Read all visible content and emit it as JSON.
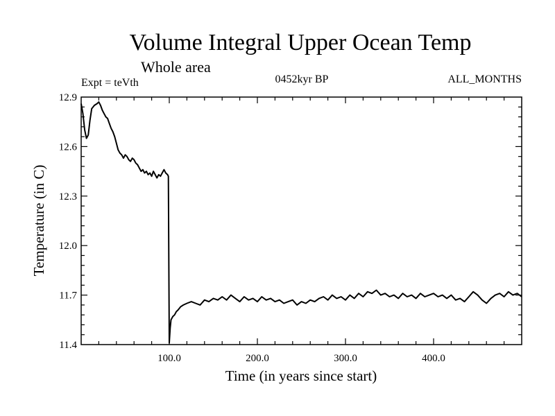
{
  "chart_data": {
    "type": "line",
    "title": "Volume Integral Upper Ocean Temp",
    "subtitle": "Whole area",
    "annotations": {
      "experiment": "Expt = teVth",
      "period": "0452kyr BP",
      "months": "ALL_MONTHS"
    },
    "xlabel": "Time (in years since start)",
    "ylabel": "Temperature (in C)",
    "xlim": [
      0,
      500
    ],
    "ylim": [
      11.4,
      12.9
    ],
    "x_ticks": [
      100.0,
      200.0,
      300.0,
      400.0
    ],
    "x_tick_labels": [
      "100.0",
      "200.0",
      "300.0",
      "400.0"
    ],
    "y_ticks": [
      11.4,
      11.7,
      12.0,
      12.3,
      12.6,
      12.9
    ],
    "y_tick_labels": [
      "11.4",
      "11.7",
      "12.0",
      "12.3",
      "12.6",
      "12.9"
    ],
    "grid": false,
    "series": [
      {
        "color": "#000000",
        "points": [
          [
            0,
            12.86
          ],
          [
            2,
            12.8
          ],
          [
            4,
            12.7
          ],
          [
            6,
            12.65
          ],
          [
            8,
            12.67
          ],
          [
            10,
            12.76
          ],
          [
            12,
            12.83
          ],
          [
            15,
            12.85
          ],
          [
            18,
            12.86
          ],
          [
            20,
            12.87
          ],
          [
            22,
            12.85
          ],
          [
            24,
            12.82
          ],
          [
            26,
            12.8
          ],
          [
            28,
            12.78
          ],
          [
            30,
            12.77
          ],
          [
            32,
            12.74
          ],
          [
            34,
            12.71
          ],
          [
            36,
            12.69
          ],
          [
            38,
            12.66
          ],
          [
            40,
            12.62
          ],
          [
            42,
            12.58
          ],
          [
            44,
            12.56
          ],
          [
            46,
            12.55
          ],
          [
            48,
            12.53
          ],
          [
            50,
            12.55
          ],
          [
            52,
            12.54
          ],
          [
            54,
            12.52
          ],
          [
            56,
            12.51
          ],
          [
            58,
            12.53
          ],
          [
            60,
            12.52
          ],
          [
            62,
            12.5
          ],
          [
            64,
            12.49
          ],
          [
            66,
            12.47
          ],
          [
            68,
            12.45
          ],
          [
            70,
            12.46
          ],
          [
            72,
            12.44
          ],
          [
            74,
            12.45
          ],
          [
            76,
            12.43
          ],
          [
            78,
            12.44
          ],
          [
            80,
            12.42
          ],
          [
            82,
            12.45
          ],
          [
            84,
            12.43
          ],
          [
            86,
            12.41
          ],
          [
            88,
            12.43
          ],
          [
            90,
            12.42
          ],
          [
            92,
            12.44
          ],
          [
            94,
            12.46
          ],
          [
            96,
            12.44
          ],
          [
            98,
            12.43
          ],
          [
            99,
            12.42
          ],
          [
            99.5,
            11.86
          ],
          [
            100,
            11.41
          ],
          [
            101,
            11.5
          ],
          [
            102,
            11.55
          ],
          [
            104,
            11.57
          ],
          [
            106,
            11.58
          ],
          [
            108,
            11.6
          ],
          [
            110,
            11.61
          ],
          [
            113,
            11.63
          ],
          [
            116,
            11.64
          ],
          [
            120,
            11.65
          ],
          [
            125,
            11.66
          ],
          [
            130,
            11.65
          ],
          [
            135,
            11.64
          ],
          [
            140,
            11.67
          ],
          [
            145,
            11.66
          ],
          [
            150,
            11.68
          ],
          [
            155,
            11.67
          ],
          [
            160,
            11.69
          ],
          [
            165,
            11.67
          ],
          [
            170,
            11.7
          ],
          [
            175,
            11.68
          ],
          [
            180,
            11.66
          ],
          [
            185,
            11.69
          ],
          [
            190,
            11.67
          ],
          [
            195,
            11.68
          ],
          [
            200,
            11.66
          ],
          [
            205,
            11.69
          ],
          [
            210,
            11.67
          ],
          [
            215,
            11.68
          ],
          [
            220,
            11.66
          ],
          [
            225,
            11.67
          ],
          [
            230,
            11.65
          ],
          [
            235,
            11.66
          ],
          [
            240,
            11.67
          ],
          [
            245,
            11.64
          ],
          [
            250,
            11.66
          ],
          [
            255,
            11.65
          ],
          [
            260,
            11.67
          ],
          [
            265,
            11.66
          ],
          [
            270,
            11.68
          ],
          [
            275,
            11.69
          ],
          [
            280,
            11.67
          ],
          [
            285,
            11.7
          ],
          [
            290,
            11.68
          ],
          [
            295,
            11.69
          ],
          [
            300,
            11.67
          ],
          [
            305,
            11.7
          ],
          [
            310,
            11.68
          ],
          [
            315,
            11.71
          ],
          [
            320,
            11.69
          ],
          [
            325,
            11.72
          ],
          [
            330,
            11.71
          ],
          [
            335,
            11.73
          ],
          [
            340,
            11.7
          ],
          [
            345,
            11.71
          ],
          [
            350,
            11.69
          ],
          [
            355,
            11.7
          ],
          [
            360,
            11.68
          ],
          [
            365,
            11.71
          ],
          [
            370,
            11.69
          ],
          [
            375,
            11.7
          ],
          [
            380,
            11.68
          ],
          [
            385,
            11.71
          ],
          [
            390,
            11.69
          ],
          [
            395,
            11.7
          ],
          [
            400,
            11.71
          ],
          [
            405,
            11.69
          ],
          [
            410,
            11.7
          ],
          [
            415,
            11.68
          ],
          [
            420,
            11.7
          ],
          [
            425,
            11.67
          ],
          [
            430,
            11.68
          ],
          [
            435,
            11.66
          ],
          [
            440,
            11.69
          ],
          [
            445,
            11.72
          ],
          [
            450,
            11.7
          ],
          [
            455,
            11.67
          ],
          [
            460,
            11.65
          ],
          [
            465,
            11.68
          ],
          [
            470,
            11.7
          ],
          [
            475,
            11.71
          ],
          [
            480,
            11.69
          ],
          [
            485,
            11.72
          ],
          [
            490,
            11.7
          ],
          [
            495,
            11.71
          ],
          [
            500,
            11.69
          ]
        ]
      }
    ]
  }
}
